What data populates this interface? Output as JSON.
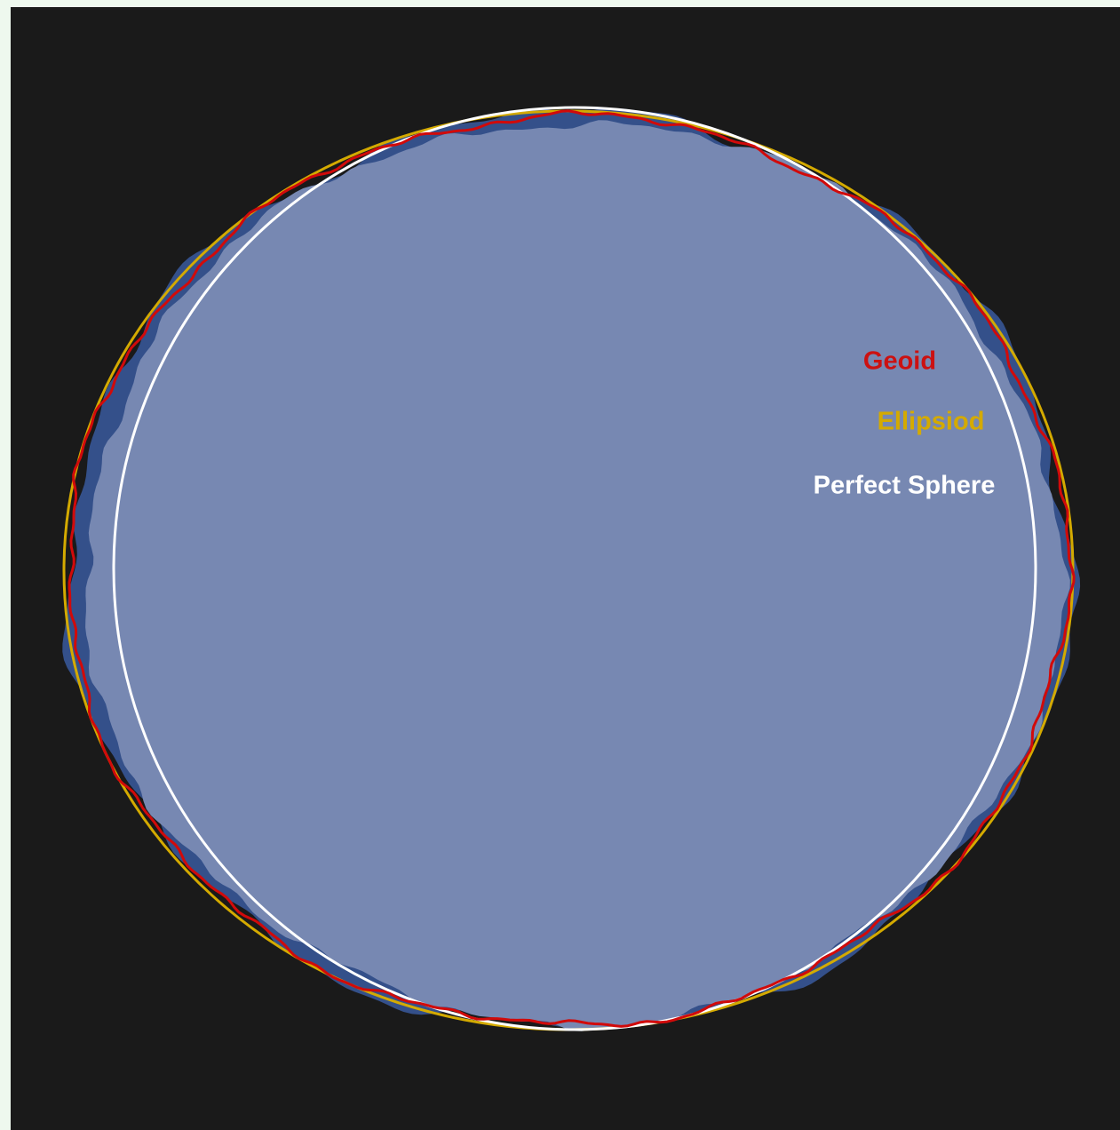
{
  "labels": {
    "geoid": "Geoid",
    "ellipsoid": "Ellipsiod",
    "sphere": "Perfect Sphere"
  }
}
